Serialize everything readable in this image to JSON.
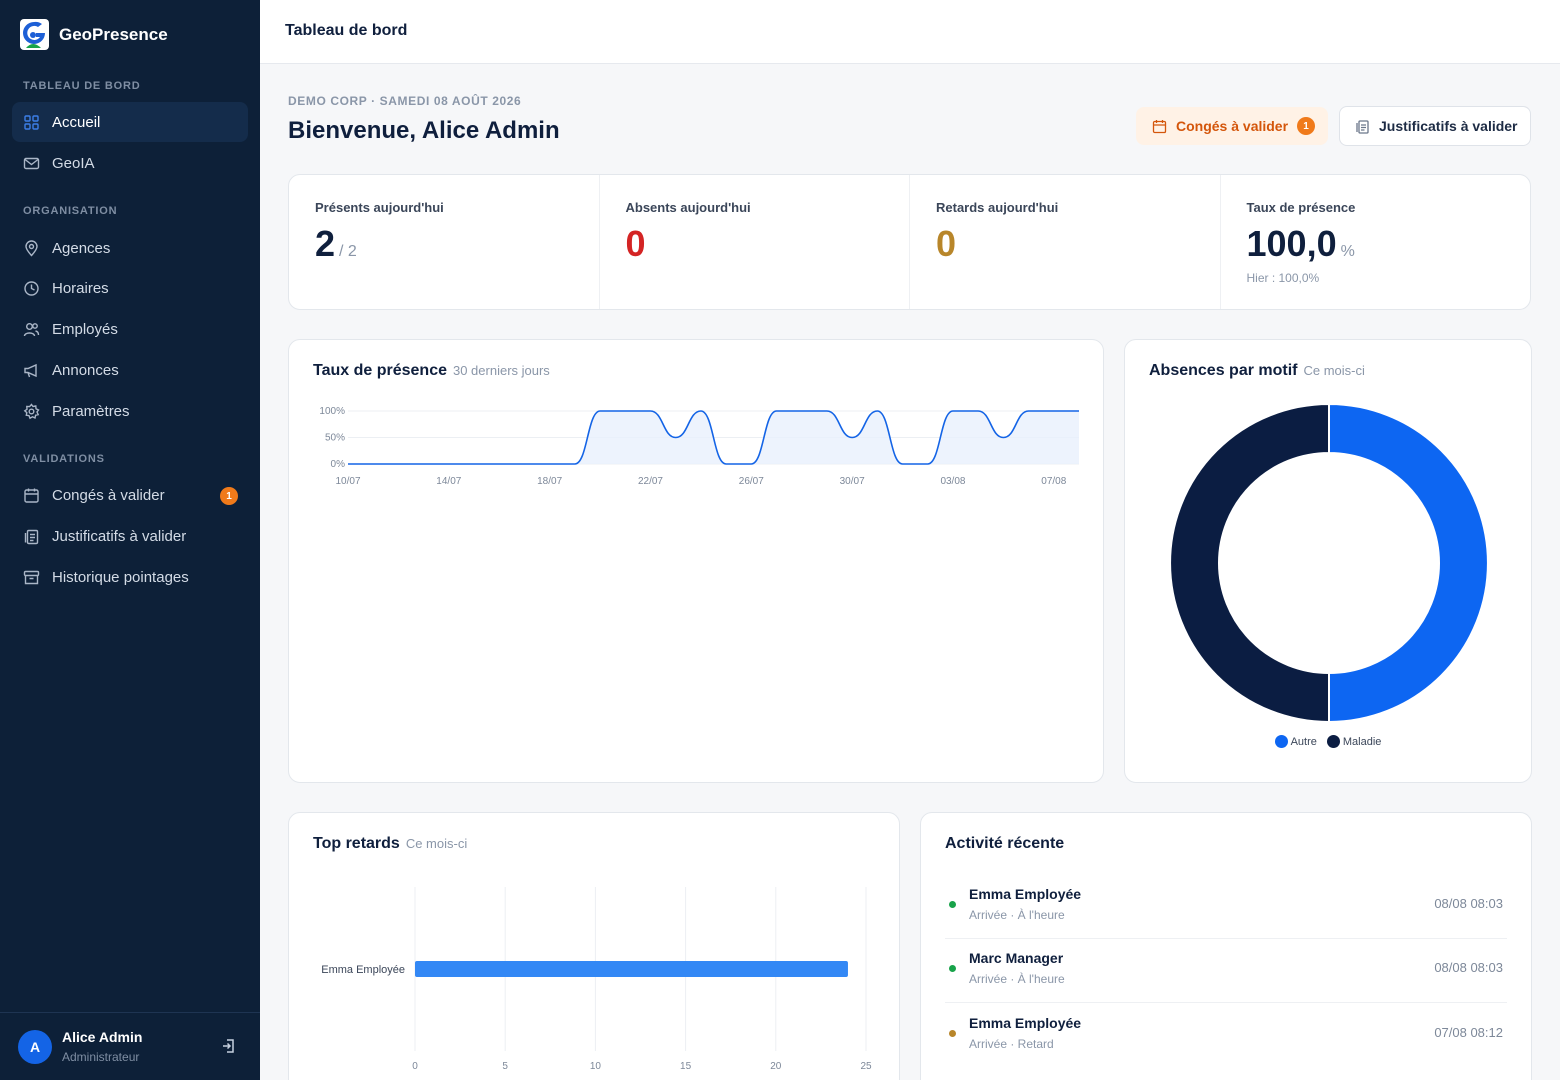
{
  "app": {
    "name": "GeoPresence"
  },
  "sidebar": {
    "sections": [
      {
        "title": "TABLEAU DE BORD",
        "items": [
          {
            "label": "Accueil",
            "icon": "grid-icon",
            "active": true
          },
          {
            "label": "GeoIA",
            "icon": "mail-icon"
          }
        ]
      },
      {
        "title": "ORGANISATION",
        "items": [
          {
            "label": "Agences",
            "icon": "map-pin-icon"
          },
          {
            "label": "Horaires",
            "icon": "clock-icon"
          },
          {
            "label": "Employés",
            "icon": "users-icon"
          },
          {
            "label": "Annonces",
            "icon": "megaphone-icon"
          },
          {
            "label": "Paramètres",
            "icon": "gear-icon"
          }
        ]
      },
      {
        "title": "VALIDATIONS",
        "items": [
          {
            "label": "Congés à valider",
            "icon": "calendar-icon",
            "badge": "1"
          },
          {
            "label": "Justificatifs à valider",
            "icon": "clipboard-icon"
          },
          {
            "label": "Historique pointages",
            "icon": "archive-icon"
          }
        ]
      }
    ],
    "user": {
      "initial": "A",
      "name": "Alice Admin",
      "role": "Administrateur"
    }
  },
  "topbar": {
    "title": "Tableau de bord"
  },
  "header": {
    "company_line": "DEMO CORP · SAMEDI 08 AOÛT 2026",
    "welcome": "Bienvenue, Alice Admin",
    "conges_button": {
      "label": "Congés à valider",
      "badge": "1"
    },
    "justif_button": {
      "label": "Justificatifs à valider"
    }
  },
  "kpis": [
    {
      "label": "Présents aujourd'hui",
      "value": "2",
      "suffix": "/ 2",
      "color": "#0f1f3d"
    },
    {
      "label": "Absents aujourd'hui",
      "value": "0",
      "color": "#d42424"
    },
    {
      "label": "Retards aujourd'hui",
      "value": "0",
      "color": "#b8862a"
    },
    {
      "label": "Taux de présence",
      "value": "100,0",
      "suffix": "%",
      "sub": "Hier : 100,0%",
      "color": "#0f1f3d"
    }
  ],
  "presence_card": {
    "title": "Taux de présence",
    "subtitle": "30 derniers jours"
  },
  "absences_card": {
    "title": "Absences par motif",
    "subtitle": "Ce mois-ci"
  },
  "retards_card": {
    "title": "Top retards",
    "subtitle": "Ce mois-ci"
  },
  "activity_card": {
    "title": "Activité récente",
    "items": [
      {
        "name": "Emma Employée",
        "detail": "Arrivée · À l'heure",
        "time": "08/08 08:03",
        "status_color": "#18a34a"
      },
      {
        "name": "Marc Manager",
        "detail": "Arrivée · À l'heure",
        "time": "08/08 08:03",
        "status_color": "#18a34a"
      },
      {
        "name": "Emma Employée",
        "detail": "Arrivée · Retard",
        "time": "07/08 08:12",
        "status_color": "#b8862a"
      }
    ]
  },
  "chart_data": [
    {
      "type": "area",
      "title": "Taux de présence",
      "subtitle": "30 derniers jours",
      "x": [
        "10/07",
        "11/07",
        "12/07",
        "13/07",
        "14/07",
        "15/07",
        "16/07",
        "17/07",
        "18/07",
        "19/07",
        "20/07",
        "21/07",
        "22/07",
        "23/07",
        "24/07",
        "25/07",
        "26/07",
        "27/07",
        "28/07",
        "29/07",
        "30/07",
        "31/07",
        "01/08",
        "02/08",
        "03/08",
        "04/08",
        "05/08",
        "06/08",
        "07/08",
        "08/08"
      ],
      "x_tick_labels": [
        "10/07",
        "14/07",
        "18/07",
        "22/07",
        "26/07",
        "30/07",
        "03/08",
        "07/08"
      ],
      "y_tick_labels": [
        "0%",
        "50%",
        "100%"
      ],
      "series": [
        {
          "values": [
            0,
            0,
            0,
            0,
            0,
            0,
            0,
            0,
            0,
            0,
            100,
            100,
            100,
            50,
            100,
            0,
            0,
            100,
            100,
            100,
            50,
            100,
            0,
            0,
            100,
            100,
            50,
            100,
            100,
            100
          ]
        }
      ],
      "ylim": [
        0,
        100
      ],
      "color": "#1464e6"
    },
    {
      "type": "pie",
      "title": "Absences par motif",
      "subtitle": "Ce mois-ci",
      "categories": [
        "Autre",
        "Maladie"
      ],
      "values": [
        1,
        1
      ],
      "colors": [
        "#0d66f2",
        "#0b1d42"
      ],
      "legend": "bottom"
    },
    {
      "type": "bar",
      "orientation": "horizontal",
      "title": "Top retards",
      "subtitle": "Ce mois-ci",
      "categories": [
        "Emma Employée"
      ],
      "values": [
        24
      ],
      "xlim": [
        0,
        25
      ],
      "x_tick_labels": [
        "0",
        "5",
        "10",
        "15",
        "20",
        "25"
      ],
      "color": "#3388f5"
    }
  ]
}
